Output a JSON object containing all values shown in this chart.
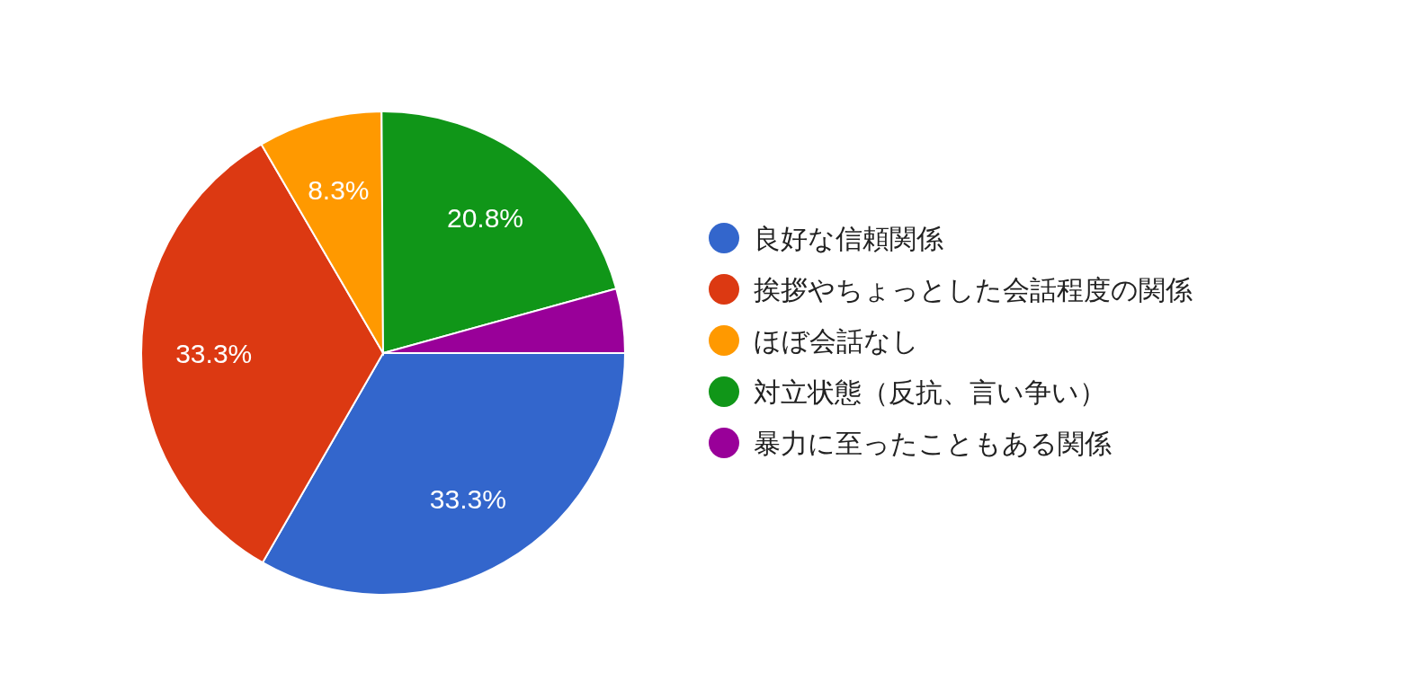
{
  "chart_data": {
    "type": "pie",
    "categories": [
      "良好な信頼関係",
      "挨拶やちょっとした会話程度の関係",
      "ほぼ会話なし",
      "対立状態（反抗、言い争い）",
      "暴力に至ったこともある関係"
    ],
    "values": [
      33.3,
      33.3,
      8.3,
      20.8,
      4.3
    ],
    "colors": [
      "#3366cc",
      "#dc3912",
      "#ff9900",
      "#109618",
      "#990099"
    ],
    "value_labels": [
      "33.3%",
      "33.3%",
      "8.3%",
      "20.8%",
      null
    ],
    "legend": "right"
  }
}
